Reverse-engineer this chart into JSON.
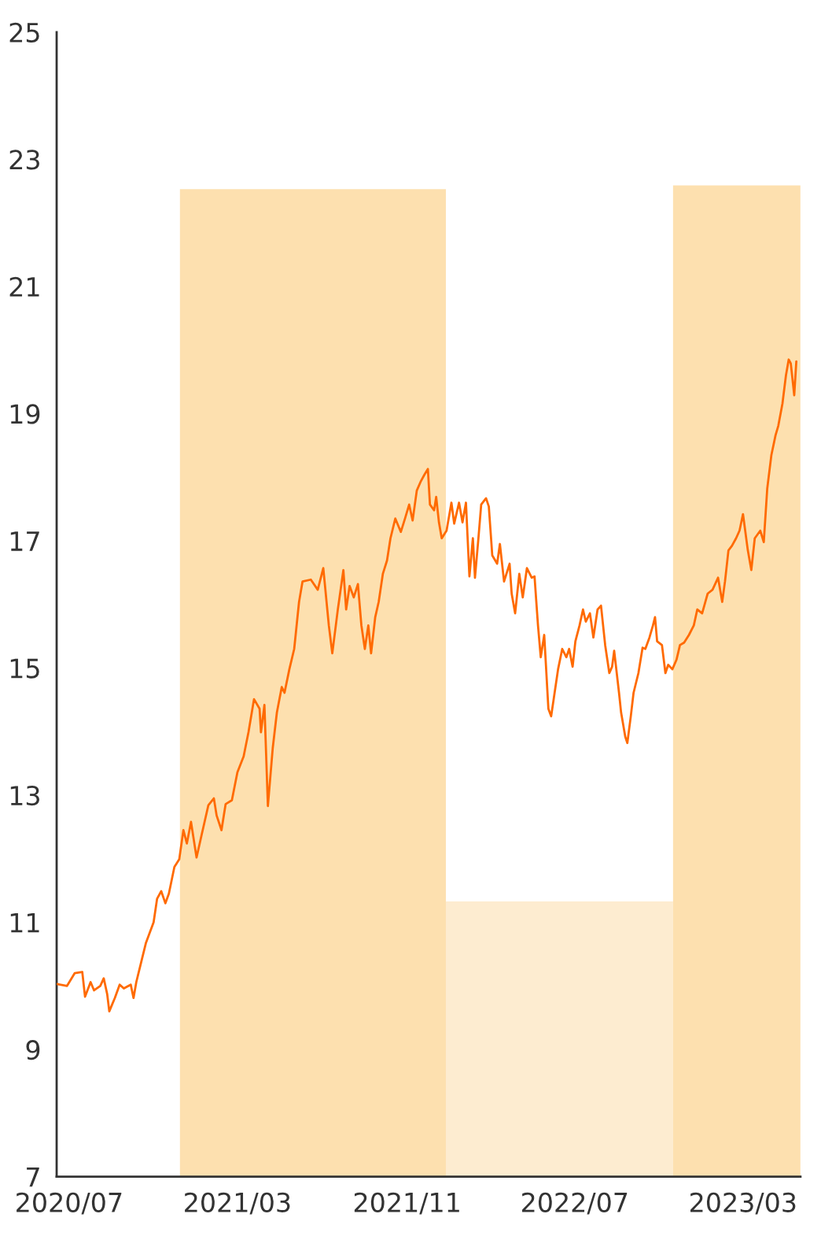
{
  "chart_data": {
    "type": "line",
    "xlim": [
      "2020-06-13",
      "2023-05-23"
    ],
    "ylim": [
      7,
      25
    ],
    "xticks": [
      {
        "value": "2020-07-01",
        "label": "2020/07"
      },
      {
        "value": "2021-03-01",
        "label": "2021/03"
      },
      {
        "value": "2021-11-01",
        "label": "2021/11"
      },
      {
        "value": "2022-07-01",
        "label": "2022/07"
      },
      {
        "value": "2023-03-01",
        "label": "2023/03"
      }
    ],
    "yticks": [
      7,
      9,
      11,
      13,
      15,
      17,
      19,
      21,
      23,
      25
    ],
    "grid": false,
    "legend": false,
    "series": [
      {
        "type": "bar",
        "x": [
          "2021-06-18",
          "2022-06-09",
          "2023-02-20"
        ],
        "values": [
          22.53,
          11.33,
          22.59
        ],
        "colors": [
          "#fde0af",
          "#fdecd0",
          "#fde0af"
        ]
      },
      {
        "color": "#ff6a00",
        "x": [
          "2020-06-13",
          "2020-06-28",
          "2020-07-09",
          "2020-07-20",
          "2020-07-24",
          "2020-08-01",
          "2020-08-06",
          "2020-08-15",
          "2020-08-20",
          "2020-08-25",
          "2020-08-28",
          "2020-09-05",
          "2020-09-12",
          "2020-09-18",
          "2020-09-28",
          "2020-10-02",
          "2020-10-06",
          "2020-10-13",
          "2020-10-20",
          "2020-10-31",
          "2020-11-05",
          "2020-11-11",
          "2020-11-17",
          "2020-11-22",
          "2020-11-30",
          "2020-12-07",
          "2020-12-13",
          "2020-12-18",
          "2020-12-24",
          "2021-01-01",
          "2021-01-08",
          "2021-01-18",
          "2021-01-26",
          "2021-01-30",
          "2021-02-06",
          "2021-02-12",
          "2021-02-21",
          "2021-03-01",
          "2021-03-10",
          "2021-03-17",
          "2021-03-25",
          "2021-04-02",
          "2021-04-04",
          "2021-04-09",
          "2021-04-14",
          "2021-04-21",
          "2021-04-27",
          "2021-05-04",
          "2021-05-08",
          "2021-05-15",
          "2021-05-22",
          "2021-05-29",
          "2021-06-03",
          "2021-06-15",
          "2021-06-25",
          "2021-07-03",
          "2021-07-11",
          "2021-07-16",
          "2021-07-24",
          "2021-08-01",
          "2021-08-05",
          "2021-08-10",
          "2021-08-16",
          "2021-08-22",
          "2021-08-27",
          "2021-09-01",
          "2021-09-06",
          "2021-09-10",
          "2021-09-16",
          "2021-09-21",
          "2021-09-27",
          "2021-10-03",
          "2021-10-08",
          "2021-10-15",
          "2021-10-23",
          "2021-10-29",
          "2021-11-04",
          "2021-11-09",
          "2021-11-15",
          "2021-11-21",
          "2021-11-26",
          "2021-12-01",
          "2021-12-04",
          "2021-12-10",
          "2021-12-13",
          "2021-12-17",
          "2021-12-21",
          "2021-12-28",
          "2022-01-04",
          "2022-01-08",
          "2022-01-15",
          "2022-01-20",
          "2022-01-25",
          "2022-01-30",
          "2022-02-04",
          "2022-02-07",
          "2022-02-12",
          "2022-02-16",
          "2022-02-23",
          "2022-02-27",
          "2022-03-04",
          "2022-03-11",
          "2022-03-15",
          "2022-03-21",
          "2022-03-29",
          "2022-04-01",
          "2022-04-06",
          "2022-04-12",
          "2022-04-17",
          "2022-04-23",
          "2022-04-30",
          "2022-05-04",
          "2022-05-09",
          "2022-05-13",
          "2022-05-18",
          "2022-05-24",
          "2022-05-28",
          "2022-06-02",
          "2022-06-07",
          "2022-06-13",
          "2022-06-19",
          "2022-06-23",
          "2022-06-28",
          "2022-07-02",
          "2022-07-08",
          "2022-07-13",
          "2022-07-17",
          "2022-07-23",
          "2022-07-28",
          "2022-08-03",
          "2022-08-08",
          "2022-08-14",
          "2022-08-20",
          "2022-08-24",
          "2022-08-27",
          "2022-09-03",
          "2022-09-06",
          "2022-09-12",
          "2022-09-15",
          "2022-09-20",
          "2022-09-24",
          "2022-10-01",
          "2022-10-07",
          "2022-10-11",
          "2022-10-17",
          "2022-10-22",
          "2022-10-25",
          "2022-10-28",
          "2022-11-04",
          "2022-11-09",
          "2022-11-13",
          "2022-11-19",
          "2022-11-25",
          "2022-11-30",
          "2022-12-06",
          "2022-12-13",
          "2022-12-20",
          "2022-12-25",
          "2023-01-01",
          "2023-01-09",
          "2023-01-16",
          "2023-01-24",
          "2023-01-30",
          "2023-02-03",
          "2023-02-08",
          "2023-02-13",
          "2023-02-19",
          "2023-02-24",
          "2023-03-01",
          "2023-03-08",
          "2023-03-13",
          "2023-03-18",
          "2023-03-26",
          "2023-03-31",
          "2023-04-05",
          "2023-04-11",
          "2023-04-17",
          "2023-04-21",
          "2023-04-27",
          "2023-05-02",
          "2023-05-06",
          "2023-05-09",
          "2023-05-14",
          "2023-05-17"
        ],
        "values": [
          10.03,
          10.0,
          10.2,
          10.22,
          9.83,
          10.06,
          9.93,
          10.0,
          10.12,
          9.87,
          9.6,
          9.81,
          10.02,
          9.96,
          10.02,
          9.81,
          10.06,
          10.37,
          10.68,
          11.0,
          11.37,
          11.49,
          11.3,
          11.45,
          11.87,
          11.99,
          12.45,
          12.24,
          12.58,
          12.02,
          12.36,
          12.84,
          12.95,
          12.68,
          12.45,
          12.86,
          12.92,
          13.36,
          13.61,
          13.99,
          14.51,
          14.36,
          13.99,
          14.42,
          12.83,
          13.74,
          14.3,
          14.7,
          14.61,
          14.98,
          15.3,
          16.04,
          16.36,
          16.39,
          16.23,
          16.57,
          15.67,
          15.23,
          15.92,
          16.54,
          15.92,
          16.29,
          16.11,
          16.32,
          15.67,
          15.3,
          15.67,
          15.23,
          15.8,
          16.04,
          16.48,
          16.69,
          17.04,
          17.35,
          17.14,
          17.35,
          17.57,
          17.32,
          17.79,
          17.94,
          18.04,
          18.13,
          17.57,
          17.48,
          17.69,
          17.29,
          17.04,
          17.16,
          17.6,
          17.27,
          17.6,
          17.29,
          17.6,
          16.44,
          17.04,
          16.42,
          17.04,
          17.57,
          17.67,
          17.54,
          16.77,
          16.64,
          16.95,
          16.36,
          16.64,
          16.17,
          15.86,
          16.48,
          16.11,
          16.57,
          16.42,
          16.44,
          15.67,
          15.17,
          15.52,
          14.36,
          14.24,
          14.61,
          14.98,
          15.3,
          15.17,
          15.3,
          15.02,
          15.42,
          15.67,
          15.92,
          15.73,
          15.86,
          15.48,
          15.92,
          15.98,
          15.36,
          14.92,
          15.02,
          15.27,
          14.61,
          14.3,
          13.92,
          13.82,
          14.24,
          14.61,
          14.92,
          15.32,
          15.3,
          15.48,
          15.67,
          15.8,
          15.42,
          15.36,
          14.92,
          15.05,
          14.98,
          15.13,
          15.36,
          15.4,
          15.52,
          15.67,
          15.92,
          15.86,
          16.17,
          16.23,
          16.42,
          16.04,
          16.36,
          16.85,
          16.92,
          17.04,
          17.16,
          17.42,
          16.85,
          16.54,
          17.04,
          17.16,
          16.98,
          17.82,
          18.35,
          18.66,
          18.81,
          19.16,
          19.6,
          19.85,
          19.79,
          19.29,
          19.82
        ]
      }
    ]
  }
}
